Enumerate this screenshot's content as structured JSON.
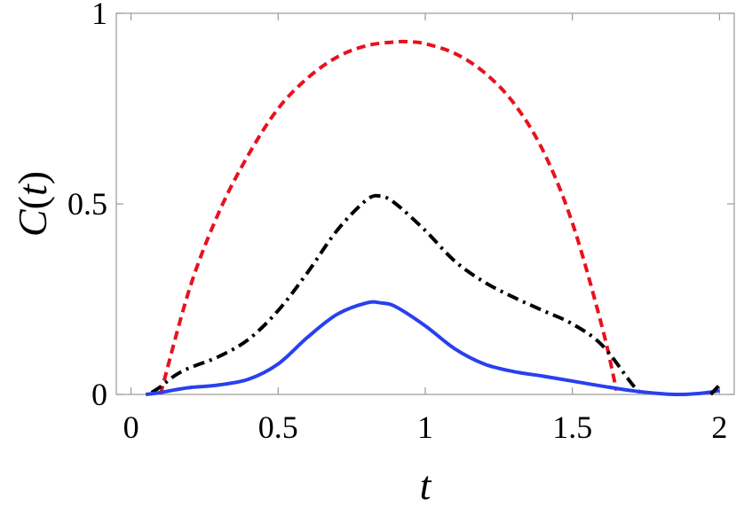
{
  "chart_data": {
    "type": "line",
    "xlabel": "t",
    "ylabel": "C(t)",
    "xlim": [
      -0.05,
      2.05
    ],
    "ylim": [
      0,
      1
    ],
    "x_ticks": [
      0,
      0.5,
      1,
      1.5,
      2
    ],
    "x_tick_labels": [
      "0",
      "0.5",
      "1",
      "1.5",
      "2"
    ],
    "y_ticks": [
      0,
      0.5,
      1
    ],
    "y_tick_labels": [
      "0",
      "0.5",
      "1"
    ],
    "grid": false,
    "legend": "none",
    "series": [
      {
        "color": "#e8121d",
        "style": "dashed",
        "x": [
          0.1,
          0.2,
          0.3,
          0.4,
          0.5,
          0.6,
          0.7,
          0.8,
          0.9,
          0.95,
          1.0,
          1.1,
          1.2,
          1.3,
          1.4,
          1.5,
          1.6,
          1.65
        ],
        "y": [
          0.0,
          0.28,
          0.48,
          0.63,
          0.75,
          0.83,
          0.885,
          0.915,
          0.925,
          0.925,
          0.92,
          0.895,
          0.845,
          0.765,
          0.64,
          0.45,
          0.18,
          0.01
        ]
      },
      {
        "color": "#000000",
        "style": "dashdot",
        "x": [
          0.07,
          0.1,
          0.15,
          0.2,
          0.3,
          0.4,
          0.5,
          0.6,
          0.7,
          0.8,
          0.85,
          0.9,
          1.0,
          1.1,
          1.2,
          1.3,
          1.4,
          1.5,
          1.6,
          1.7,
          1.73
        ],
        "y": [
          0.005,
          0.02,
          0.05,
          0.07,
          0.1,
          0.145,
          0.22,
          0.32,
          0.43,
          0.51,
          0.52,
          0.5,
          0.43,
          0.35,
          0.295,
          0.255,
          0.22,
          0.185,
          0.13,
          0.03,
          0.005
        ]
      },
      {
        "color": "#2940ef",
        "style": "solid",
        "x": [
          0.05,
          0.1,
          0.15,
          0.2,
          0.3,
          0.4,
          0.5,
          0.6,
          0.7,
          0.8,
          0.85,
          0.9,
          1.0,
          1.1,
          1.2,
          1.3,
          1.4,
          1.5,
          1.6,
          1.7,
          1.8,
          1.85,
          1.9,
          1.95,
          2.0
        ],
        "y": [
          0.0,
          0.005,
          0.012,
          0.018,
          0.025,
          0.04,
          0.08,
          0.15,
          0.21,
          0.24,
          0.24,
          0.23,
          0.18,
          0.12,
          0.08,
          0.06,
          0.048,
          0.035,
          0.022,
          0.01,
          0.002,
          0.0,
          0.001,
          0.004,
          0.01
        ]
      },
      {
        "color": "#000000",
        "style": "dashdot",
        "x": [
          1.97,
          2.0
        ],
        "y": [
          0.0,
          0.025
        ]
      }
    ]
  }
}
